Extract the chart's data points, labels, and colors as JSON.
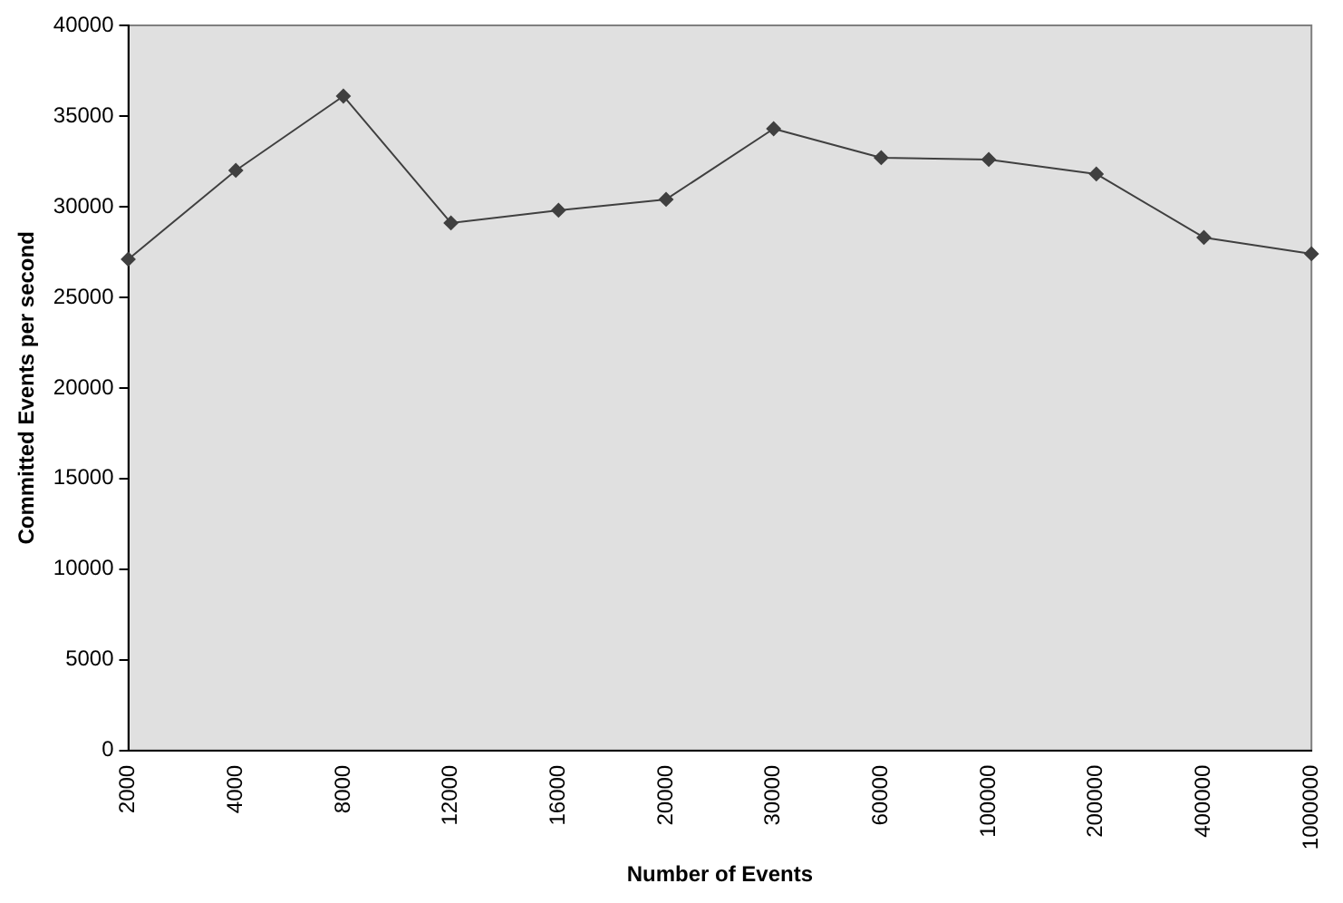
{
  "chart_data": {
    "type": "line",
    "xlabel": "Number of Events",
    "ylabel": "Committed Events per second",
    "categories": [
      "2000",
      "4000",
      "8000",
      "12000",
      "16000",
      "20000",
      "30000",
      "60000",
      "100000",
      "200000",
      "400000",
      "1000000"
    ],
    "series": [
      {
        "color": "#404040",
        "values": [
          27100,
          32000,
          36100,
          29100,
          29800,
          30400,
          34300,
          32700,
          32600,
          31800,
          28300,
          27400
        ]
      }
    ],
    "ylim": [
      0,
      40000
    ],
    "yticks": [
      0,
      5000,
      10000,
      15000,
      20000,
      25000,
      30000,
      35000,
      40000
    ],
    "grid": false,
    "legend": false,
    "marker": "diamond",
    "line_style": "solid"
  }
}
